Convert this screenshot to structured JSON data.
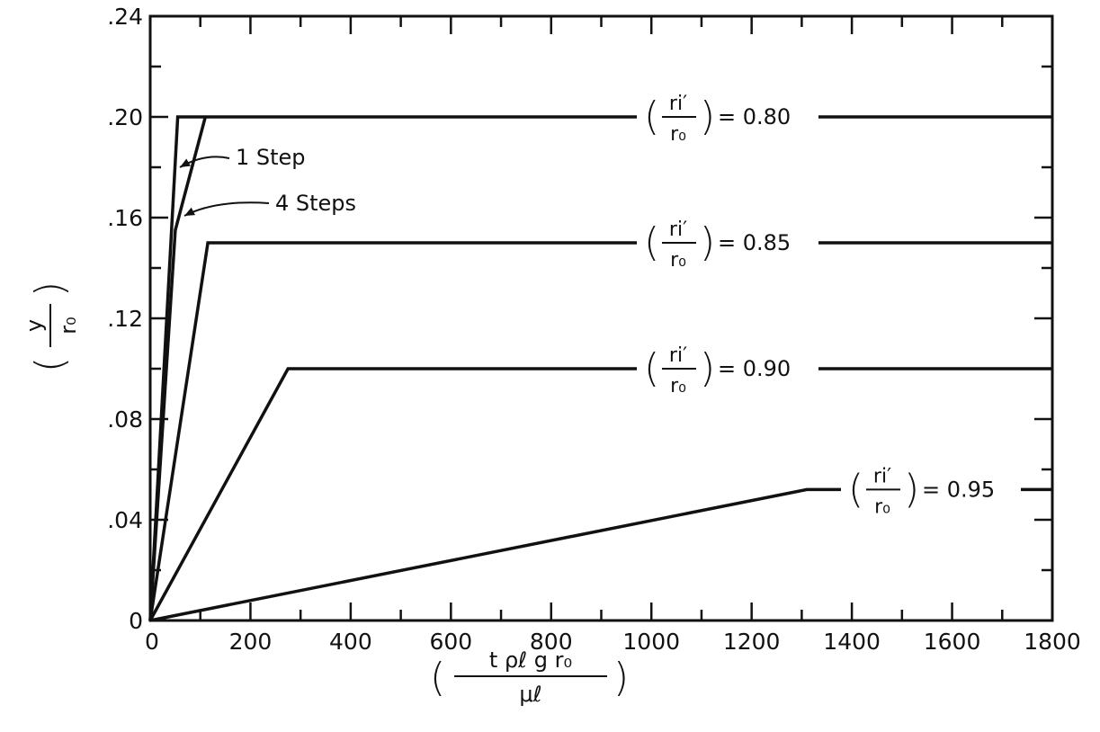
{
  "chart_data": {
    "type": "line",
    "xlim": [
      0,
      1800
    ],
    "ylim": [
      0,
      0.24
    ],
    "x_ticks": [
      0,
      200,
      400,
      600,
      800,
      1000,
      1200,
      1400,
      1600,
      1800
    ],
    "x_tick_labels": [
      "0",
      "200",
      "400",
      "600",
      "800",
      "1000",
      "1200",
      "1400",
      "1600",
      "1800"
    ],
    "y_ticks": [
      0,
      0.04,
      0.08,
      0.12,
      0.16,
      0.2,
      0.24
    ],
    "y_tick_labels": [
      "0",
      ".04",
      ".08",
      ".12",
      ".16",
      ".20",
      ".24"
    ],
    "xlabel": {
      "numerator": "t ρℓ g r₀",
      "denominator": "μℓ"
    },
    "ylabel": {
      "numerator": "y",
      "denominator": "r₀"
    },
    "grid": false,
    "series": [
      {
        "label": "(ri′/r₀) = 0.80, 1 Step",
        "ratio": "0.80",
        "points": [
          [
            0,
            0
          ],
          [
            55,
            0.2
          ],
          [
            1800,
            0.2
          ]
        ]
      },
      {
        "label": "(ri′/r₀) = 0.80, 4 Steps",
        "ratio": "0.80",
        "points": [
          [
            0,
            0
          ],
          [
            50,
            0.155
          ],
          [
            110,
            0.2
          ]
        ]
      },
      {
        "label": "(ri′/r₀) = 0.85",
        "ratio": "0.85",
        "points": [
          [
            0,
            0
          ],
          [
            115,
            0.15
          ],
          [
            1800,
            0.15
          ]
        ]
      },
      {
        "label": "(ri′/r₀) = 0.90",
        "ratio": "0.90",
        "points": [
          [
            0,
            0
          ],
          [
            275,
            0.1
          ],
          [
            1800,
            0.1
          ]
        ]
      },
      {
        "label": "(ri′/r₀) = 0.95",
        "ratio": "0.95",
        "points": [
          [
            0,
            0
          ],
          [
            1310,
            0.052
          ],
          [
            1800,
            0.052
          ]
        ]
      }
    ],
    "curve_labels": [
      {
        "ratio_label": {
          "num": "ri′",
          "den": "r₀",
          "value": "= 0.80"
        }
      },
      {
        "ratio_label": {
          "num": "ri′",
          "den": "r₀",
          "value": "= 0.85"
        }
      },
      {
        "ratio_label": {
          "num": "ri′",
          "den": "r₀",
          "value": "= 0.90"
        }
      },
      {
        "ratio_label": {
          "num": "ri′",
          "den": "r₀",
          "value": "= 0.95"
        }
      }
    ],
    "annotations": [
      {
        "text": "1 Step"
      },
      {
        "text": "4 Steps"
      }
    ]
  }
}
